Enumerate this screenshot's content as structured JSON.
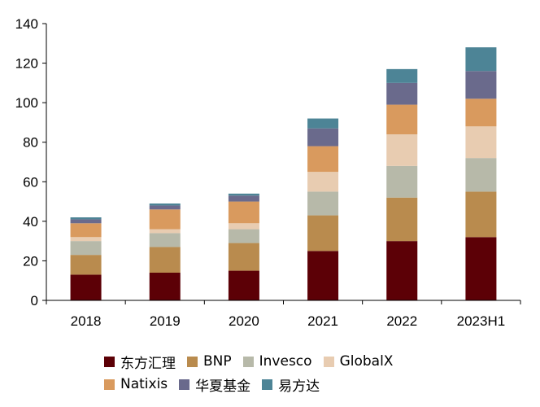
{
  "chart_data": {
    "type": "bar",
    "stacked": true,
    "categories": [
      "2018",
      "2019",
      "2020",
      "2021",
      "2022",
      "2023H1"
    ],
    "ylim": [
      0,
      140
    ],
    "yticks": [
      0,
      20,
      40,
      60,
      80,
      100,
      120,
      140
    ],
    "grid": false,
    "legend_position": "bottom",
    "series": [
      {
        "name": "东方汇理",
        "color": "#5c0006",
        "values": [
          13,
          14,
          15,
          25,
          30,
          32
        ]
      },
      {
        "name": "BNP",
        "color": "#b98b4e",
        "values": [
          10,
          13,
          14,
          18,
          22,
          23
        ]
      },
      {
        "name": "Invesco",
        "color": "#b7b9a9",
        "values": [
          7,
          7,
          7,
          12,
          16,
          17
        ]
      },
      {
        "name": "GlobalX",
        "color": "#e8ccb1",
        "values": [
          2,
          2,
          3,
          10,
          16,
          16
        ]
      },
      {
        "name": "Natixis",
        "color": "#d99a5e",
        "values": [
          7,
          10,
          11,
          13,
          15,
          14
        ]
      },
      {
        "name": "华夏基金",
        "color": "#6a6a8c",
        "values": [
          2,
          2,
          3,
          9,
          11,
          14
        ]
      },
      {
        "name": "易方达",
        "color": "#4d8496",
        "values": [
          1,
          1,
          1,
          5,
          7,
          12
        ]
      }
    ]
  }
}
